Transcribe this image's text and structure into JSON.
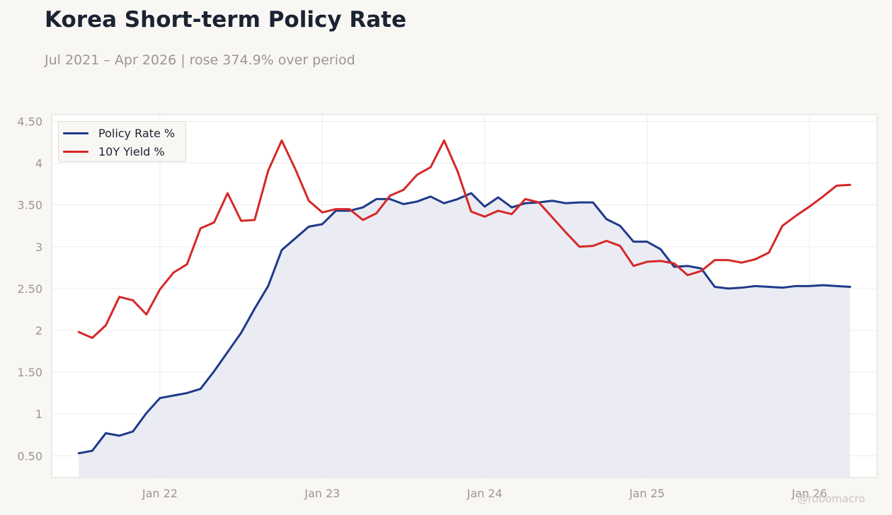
{
  "header": {
    "title": "Korea Short-term Policy Rate",
    "subtitle": "Jul 2021 – Apr 2026 | rose 374.9% over period"
  },
  "watermark": "@robomacro",
  "colors": {
    "policy": "#1f3a8a",
    "yield": "#d62828",
    "area_fill": "#e8e9f1",
    "grid": "#ececec",
    "tick_text": "#9a9793",
    "plot_border": "#dedad5"
  },
  "chart_data": {
    "type": "line",
    "title": "Korea Short-term Policy Rate",
    "subtitle": "Jul 2021 – Apr 2026 | rose 374.9% over period",
    "xlabel": "",
    "ylabel": "",
    "x_start": "2021-07",
    "x_end": "2026-04",
    "x_ticks": [
      {
        "label": "Jan 22",
        "date": "2022-01"
      },
      {
        "label": "Jan 23",
        "date": "2023-01"
      },
      {
        "label": "Jan 24",
        "date": "2024-01"
      },
      {
        "label": "Jan 25",
        "date": "2025-01"
      },
      {
        "label": "Jan 26",
        "date": "2026-01"
      }
    ],
    "y_ticks": [
      {
        "label": "0.50",
        "value": 0.5
      },
      {
        "label": "1",
        "value": 1
      },
      {
        "label": "1.50",
        "value": 1.5
      },
      {
        "label": "2",
        "value": 2
      },
      {
        "label": "2.50",
        "value": 2.5
      },
      {
        "label": "3",
        "value": 3
      },
      {
        "label": "3.50",
        "value": 3.5
      },
      {
        "label": "4",
        "value": 4
      },
      {
        "label": "4.50",
        "value": 4.5
      }
    ],
    "ylim": [
      0.24,
      4.58
    ],
    "xlim": [
      "2021-05",
      "2026-06"
    ],
    "grid": true,
    "legend_placement": "top-left",
    "dates": [
      "2021-07",
      "2021-08",
      "2021-09",
      "2021-10",
      "2021-11",
      "2021-12",
      "2022-01",
      "2022-02",
      "2022-03",
      "2022-04",
      "2022-05",
      "2022-06",
      "2022-07",
      "2022-08",
      "2022-09",
      "2022-10",
      "2022-11",
      "2022-12",
      "2023-01",
      "2023-02",
      "2023-03",
      "2023-04",
      "2023-05",
      "2023-06",
      "2023-07",
      "2023-08",
      "2023-09",
      "2023-10",
      "2023-11",
      "2023-12",
      "2024-01",
      "2024-02",
      "2024-03",
      "2024-04",
      "2024-05",
      "2024-06",
      "2024-07",
      "2024-08",
      "2024-09",
      "2024-10",
      "2024-11",
      "2024-12",
      "2025-01",
      "2025-02",
      "2025-03",
      "2025-04",
      "2025-05",
      "2025-06",
      "2025-07",
      "2025-08",
      "2025-09",
      "2025-10",
      "2025-11",
      "2025-12",
      "2026-01",
      "2026-02",
      "2026-03",
      "2026-04"
    ],
    "series": [
      {
        "name": "Policy Rate %",
        "color": "#1f3a8a",
        "fill": true,
        "values": [
          0.53,
          0.56,
          0.77,
          0.74,
          0.79,
          1.01,
          1.19,
          1.22,
          1.25,
          1.3,
          1.51,
          1.74,
          1.97,
          2.26,
          2.53,
          2.96,
          3.1,
          3.24,
          3.27,
          3.43,
          3.43,
          3.47,
          3.57,
          3.57,
          3.51,
          3.54,
          3.6,
          3.52,
          3.57,
          3.64,
          3.48,
          3.59,
          3.47,
          3.52,
          3.53,
          3.55,
          3.52,
          3.53,
          3.53,
          3.33,
          3.25,
          3.06,
          3.06,
          2.97,
          2.76,
          2.77,
          2.74,
          2.52,
          2.5,
          2.51,
          2.53,
          2.52,
          2.51,
          2.53,
          2.53,
          2.54,
          2.53,
          2.52
        ]
      },
      {
        "name": "10Y Yield %",
        "color": "#d62828",
        "fill": false,
        "values": [
          1.98,
          1.91,
          2.06,
          2.4,
          2.36,
          2.19,
          2.49,
          2.69,
          2.79,
          3.22,
          3.29,
          3.64,
          3.31,
          3.32,
          3.91,
          4.27,
          3.93,
          3.55,
          3.41,
          3.45,
          3.45,
          3.32,
          3.4,
          3.61,
          3.68,
          3.86,
          3.95,
          4.27,
          3.9,
          3.42,
          3.36,
          3.43,
          3.39,
          3.57,
          3.53,
          3.35,
          3.17,
          3.0,
          3.01,
          3.07,
          3.01,
          2.77,
          2.82,
          2.83,
          2.8,
          2.66,
          2.71,
          2.84,
          2.84,
          2.81,
          2.85,
          2.93,
          3.25,
          3.37,
          3.48,
          3.6,
          3.73,
          3.74
        ]
      }
    ]
  }
}
